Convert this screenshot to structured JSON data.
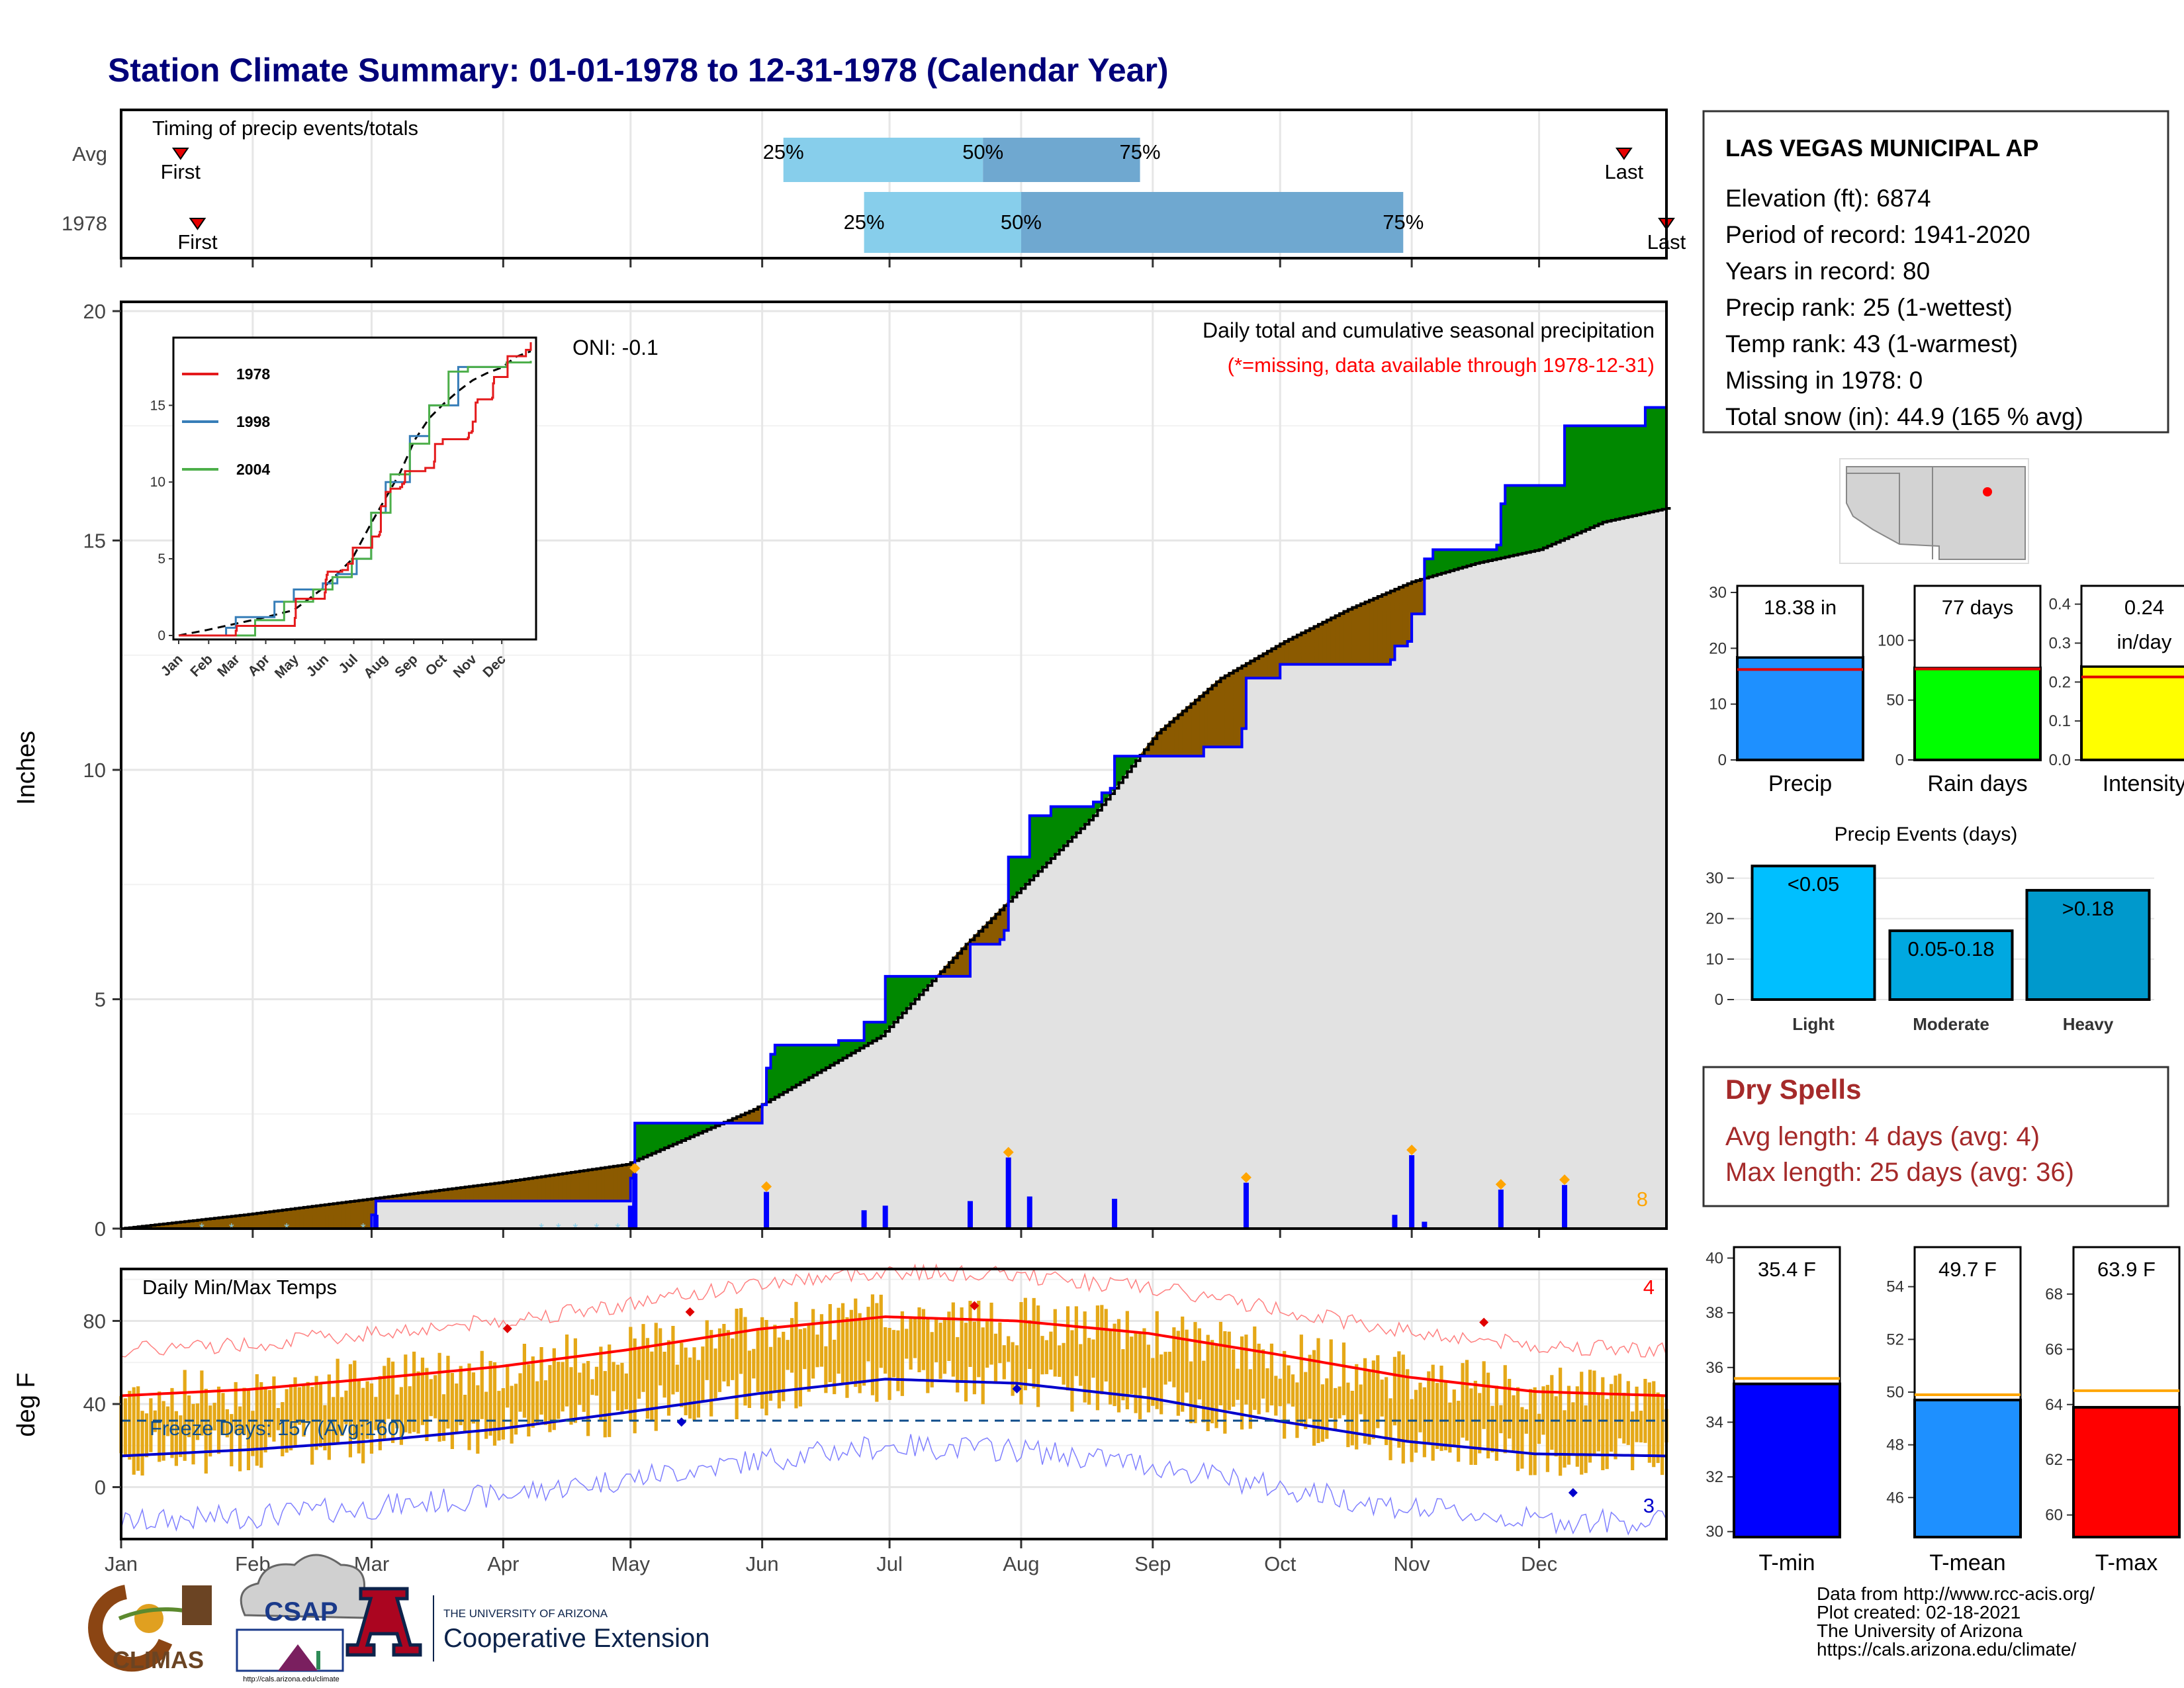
{
  "title": "Station Climate Summary: 01-01-1978 to 12-31-1978 (Calendar Year)",
  "colors": {
    "title": "#00007a",
    "panel_bg": "#ffffff",
    "grid": "#e6e6e6",
    "light_blue": "#87ceeb",
    "mid_blue": "#6fa8d0",
    "below_fill": "#8b5a00",
    "above_fill": "#008800",
    "cum_line": "#0000ff",
    "avg_fill": "#e2e2e2",
    "daily_bar": "#0000ff",
    "marker": "#ffa500",
    "temp_bar": "#e5a817",
    "tmax_line": "#ff0000",
    "tmin_line": "#0000cc",
    "dryspell": "#a52a2a",
    "freeze_line": "#104e8b"
  },
  "timing": {
    "label": "Timing of precip events/totals",
    "rows": [
      {
        "name": "Avg",
        "first_label": "First",
        "last_label": "Last",
        "first_day": 15,
        "last_day": 355,
        "q25": 157,
        "q50": 204,
        "q75": 241,
        "q25_label": "25%",
        "q50_label": "50%",
        "q75_label": "75%"
      },
      {
        "name": "1978",
        "first_label": "First",
        "last_label": "Last",
        "first_day": 19,
        "last_day": 365,
        "q25": 176,
        "q50": 213,
        "q75": 303,
        "q25_label": "25%",
        "q50_label": "50%",
        "q75_label": "75%"
      }
    ]
  },
  "precip": {
    "ylabel": "Inches",
    "y_ticks": [
      "0",
      "5",
      "10",
      "15",
      "20"
    ],
    "oni": "ONI: -0.1",
    "subtitle": "Daily total and cumulative seasonal precipitation",
    "missing_note": "(*=missing, data available through 1978-12-31)",
    "corner_count": "8"
  },
  "inset": {
    "legend": [
      "1978",
      "1998",
      "2004"
    ],
    "colors": [
      "#e41a1c",
      "#377eb8",
      "#4daf4a"
    ],
    "y_ticks": [
      "0",
      "5",
      "10",
      "15"
    ],
    "months": [
      "Jan",
      "Feb",
      "Mar",
      "Apr",
      "May",
      "Jun",
      "Jul",
      "Aug",
      "Sep",
      "Oct",
      "Nov",
      "Dec"
    ]
  },
  "temps": {
    "ylabel": "deg F",
    "label": "Daily Min/Max Temps",
    "freeze_label": "Freeze Days: 157 (Avg:160)",
    "record_high_count": "4",
    "record_low_count": "3",
    "y_ticks": [
      "0",
      "40",
      "80"
    ]
  },
  "months": [
    "Jan",
    "Feb",
    "Mar",
    "Apr",
    "May",
    "Jun",
    "Jul",
    "Aug",
    "Sep",
    "Oct",
    "Nov",
    "Dec"
  ],
  "station": {
    "name": "LAS VEGAS MUNICIPAL AP",
    "lines": [
      "Elevation (ft): 6874",
      "Period of record: 1941-2020",
      "Years in record: 80",
      "Precip rank: 25 (1-wettest)",
      "Temp rank: 43 (1-warmest)",
      "Missing in 1978: 0",
      "Total snow (in): 44.9 (165 % avg)"
    ]
  },
  "summary_bars": [
    {
      "label": "Precip",
      "value_label": "18.38 in",
      "value": 18.38,
      "avg": 16.2,
      "max": 30,
      "ticks": [
        "0",
        "10",
        "20",
        "30"
      ],
      "tick_values": [
        0,
        10,
        20,
        30
      ],
      "color": "#1e90ff"
    },
    {
      "label": "Rain days",
      "value_label": "77 days",
      "value": 77,
      "avg": 76,
      "max": 140,
      "ticks": [
        "0",
        "50",
        "100"
      ],
      "tick_values": [
        0,
        50,
        100
      ],
      "color": "#00ff00"
    },
    {
      "label": "Intensity",
      "value_label": "0.24\nin/day",
      "value": 0.24,
      "avg": 0.213,
      "max": 0.43,
      "ticks": [
        "0.0",
        "0.1",
        "0.2",
        "0.3",
        "0.4"
      ],
      "tick_values": [
        0,
        0.1,
        0.2,
        0.3,
        0.4
      ],
      "color": "#ffff00"
    }
  ],
  "events": {
    "title": "Precip Events (days)",
    "categories": [
      "Light",
      "Moderate",
      "Heavy"
    ],
    "bar_labels": [
      "<0.05",
      "0.05-0.18",
      ">0.18"
    ],
    "values": [
      33,
      17,
      27
    ],
    "ticks": [
      "0",
      "10",
      "20",
      "30"
    ],
    "tick_values": [
      0,
      10,
      20,
      30
    ],
    "colors": [
      "#00bfff",
      "#00a8e0",
      "#0099cc"
    ]
  },
  "dry_spells": {
    "title": "Dry Spells",
    "lines": [
      "Avg length: 4 days (avg: 4)",
      "Max length: 25 days (avg: 36)"
    ]
  },
  "temp_bars": [
    {
      "label": "T-min",
      "value_label": "35.4 F",
      "value": 35.4,
      "avg": 35.6,
      "min": 29.8,
      "max": 40.4,
      "ticks": [
        "30",
        "32",
        "34",
        "36",
        "38",
        "40"
      ],
      "tick_values": [
        30,
        32,
        34,
        36,
        38,
        40
      ],
      "color": "#0000ff"
    },
    {
      "label": "T-mean",
      "value_label": "49.7 F",
      "value": 49.7,
      "avg": 49.9,
      "min": 44.5,
      "max": 55.5,
      "ticks": [
        "46",
        "48",
        "50",
        "52",
        "54"
      ],
      "tick_values": [
        46,
        48,
        50,
        52,
        54
      ],
      "color": "#1e90ff"
    },
    {
      "label": "T-max",
      "value_label": "63.9 F",
      "value": 63.9,
      "avg": 64.5,
      "min": 59.2,
      "max": 69.7,
      "ticks": [
        "60",
        "62",
        "64",
        "66",
        "68"
      ],
      "tick_values": [
        60,
        62,
        64,
        66,
        68
      ],
      "color": "#ff0000"
    }
  ],
  "footer": {
    "lines": [
      "Data from http://www.rcc-acis.org/",
      "Plot created: 02-18-2021",
      "The University of Arizona",
      "https://cals.arizona.edu/climate/"
    ],
    "climas": "CLIMAS",
    "csap": "CSAP",
    "csap_url": "http://cals.arizona.edu/climate",
    "ua_small": "THE UNIVERSITY OF ARIZONA",
    "ua_big": "Cooperative Extension"
  },
  "chart_data": [
    {
      "type": "bar",
      "title": "Timing of precip events/totals",
      "categories": [
        "Avg",
        "1978"
      ],
      "series": [
        {
          "name": "25%",
          "values": [
            157,
            176
          ]
        },
        {
          "name": "50%",
          "values": [
            204,
            213
          ]
        },
        {
          "name": "75%",
          "values": [
            241,
            303
          ]
        }
      ],
      "xlim": [
        1,
        365
      ]
    },
    {
      "type": "area",
      "title": "Daily total and cumulative seasonal precipitation",
      "ylabel": "Inches",
      "ylim": [
        0,
        20
      ],
      "xlim": [
        1,
        365
      ],
      "cumulative_1978": [
        [
          1,
          0
        ],
        [
          60,
          0.3
        ],
        [
          61,
          0.6
        ],
        [
          120,
          0.6
        ],
        [
          121,
          1.1
        ],
        [
          122,
          2.3
        ],
        [
          135,
          2.3
        ],
        [
          152,
          2.7
        ],
        [
          153,
          3.5
        ],
        [
          154,
          3.8
        ],
        [
          155,
          4.0
        ],
        [
          170,
          4.1
        ],
        [
          176,
          4.5
        ],
        [
          181,
          5.5
        ],
        [
          200,
          5.5
        ],
        [
          201,
          6.2
        ],
        [
          208,
          6.3
        ],
        [
          209,
          6.5
        ],
        [
          210,
          8.1
        ],
        [
          214,
          8.1
        ],
        [
          215,
          9.0
        ],
        [
          220,
          9.2
        ],
        [
          230,
          9.3
        ],
        [
          232,
          9.5
        ],
        [
          234,
          9.6
        ],
        [
          235,
          10.3
        ],
        [
          256,
          10.5
        ],
        [
          265,
          10.9
        ],
        [
          266,
          12.0
        ],
        [
          274,
          12.3
        ],
        [
          300,
          12.4
        ],
        [
          301,
          12.7
        ],
        [
          304,
          12.8
        ],
        [
          305,
          13.4
        ],
        [
          308,
          14.6
        ],
        [
          310,
          14.8
        ],
        [
          325,
          14.9
        ],
        [
          326,
          15.8
        ],
        [
          327,
          16.2
        ],
        [
          340,
          16.2
        ],
        [
          341,
          17.5
        ],
        [
          360,
          17.9
        ],
        [
          365,
          18.38
        ]
      ],
      "average": [
        [
          1,
          0
        ],
        [
          30,
          0.3
        ],
        [
          60,
          0.65
        ],
        [
          90,
          1.0
        ],
        [
          120,
          1.4
        ],
        [
          150,
          2.6
        ],
        [
          180,
          4.2
        ],
        [
          200,
          6.2
        ],
        [
          215,
          7.6
        ],
        [
          230,
          9.0
        ],
        [
          245,
          10.8
        ],
        [
          260,
          12.0
        ],
        [
          275,
          12.8
        ],
        [
          290,
          13.5
        ],
        [
          305,
          14.1
        ],
        [
          320,
          14.5
        ],
        [
          335,
          14.8
        ],
        [
          350,
          15.4
        ],
        [
          365,
          15.7
        ]
      ],
      "daily_events": [
        [
          61,
          0.3
        ],
        [
          121,
          0.5
        ],
        [
          122,
          1.2
        ],
        [
          153,
          0.8
        ],
        [
          176,
          0.4
        ],
        [
          181,
          0.5
        ],
        [
          201,
          0.6
        ],
        [
          210,
          1.55
        ],
        [
          215,
          0.7
        ],
        [
          235,
          0.65
        ],
        [
          266,
          1.0
        ],
        [
          301,
          0.3
        ],
        [
          305,
          1.6
        ],
        [
          308,
          0.15
        ],
        [
          326,
          0.85
        ],
        [
          341,
          0.95
        ]
      ]
    },
    {
      "type": "line",
      "title": "Daily Min/Max Temps",
      "ylabel": "deg F",
      "ylim": [
        -25,
        105
      ],
      "series": [
        {
          "name": "avg_max",
          "x": [
            1,
            31,
            59,
            90,
            120,
            151,
            181,
            212,
            243,
            273,
            304,
            334,
            365
          ],
          "values": [
            44,
            47,
            52,
            58,
            66,
            76,
            82,
            80,
            74,
            64,
            53,
            46,
            44
          ]
        },
        {
          "name": "avg_min",
          "x": [
            1,
            31,
            59,
            90,
            120,
            151,
            181,
            212,
            243,
            273,
            304,
            334,
            365
          ],
          "values": [
            15,
            18,
            22,
            28,
            36,
            45,
            52,
            50,
            43,
            32,
            22,
            16,
            15
          ]
        }
      ],
      "freeze_days": 157,
      "freeze_avg": 160
    }
  ]
}
